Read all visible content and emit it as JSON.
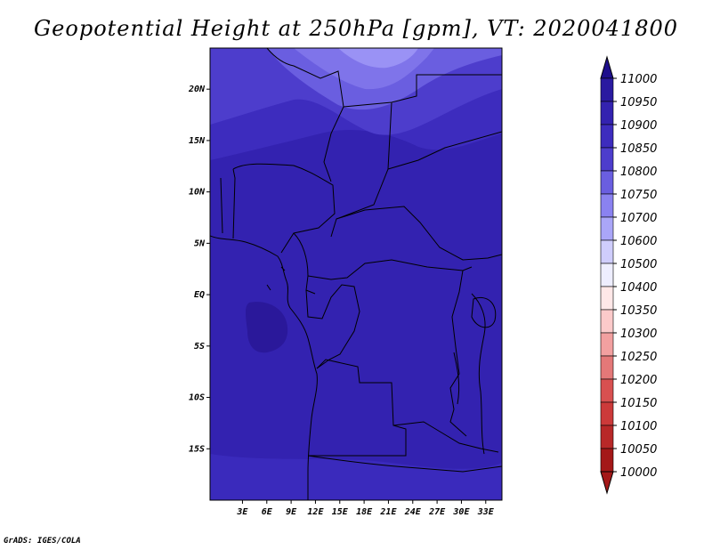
{
  "title": "Geopotential Height at 250hPa [gpm], VT: 2020041800",
  "credit": "GrADS: IGES/COLA",
  "map": {
    "lon_range": [
      -1,
      35
    ],
    "lat_range": [
      -20,
      24
    ],
    "lon_ticks": [
      {
        "value": 3,
        "label": "3E"
      },
      {
        "value": 6,
        "label": "6E"
      },
      {
        "value": 9,
        "label": "9E"
      },
      {
        "value": 12,
        "label": "12E"
      },
      {
        "value": 15,
        "label": "15E"
      },
      {
        "value": 18,
        "label": "18E"
      },
      {
        "value": 21,
        "label": "21E"
      },
      {
        "value": 24,
        "label": "24E"
      },
      {
        "value": 27,
        "label": "27E"
      },
      {
        "value": 30,
        "label": "30E"
      },
      {
        "value": 33,
        "label": "33E"
      }
    ],
    "lat_ticks": [
      {
        "value": 20,
        "label": "20N"
      },
      {
        "value": 15,
        "label": "15N"
      },
      {
        "value": 10,
        "label": "10N"
      },
      {
        "value": 5,
        "label": "5N"
      },
      {
        "value": 0,
        "label": "EQ"
      },
      {
        "value": -5,
        "label": "5S"
      },
      {
        "value": -10,
        "label": "10S"
      },
      {
        "value": -15,
        "label": "15S"
      }
    ]
  },
  "colorbar": {
    "levels": [
      "11000",
      "10950",
      "10900",
      "10850",
      "10800",
      "10750",
      "10700",
      "10600",
      "10500",
      "10400",
      "10350",
      "10300",
      "10250",
      "10200",
      "10150",
      "10100",
      "10050",
      "10000"
    ],
    "colors": [
      "#1e0f8c",
      "#2a1aa0",
      "#3322b0",
      "#3d2cbe",
      "#4d3dcc",
      "#6a5ee0",
      "#8a82f0",
      "#aaa6f8",
      "#cfcdfc",
      "#eeeeff",
      "#ffe8e8",
      "#fccaca",
      "#f2a0a0",
      "#e47878",
      "#d85050",
      "#cc3a3a",
      "#b82828",
      "#a41818"
    ]
  },
  "chart_data": {
    "type": "heatmap",
    "title": "Geopotential Height at 250hPa [gpm], VT: 2020041800",
    "xlabel": "",
    "ylabel": "",
    "x_range": [
      -1,
      35
    ],
    "y_range": [
      -20,
      24
    ],
    "zones": [
      {
        "band": "10700-10750",
        "region": "north-central near 16E-24E, 21N-24N"
      },
      {
        "band": "10750-10800",
        "region": "north, 13E-27E, 19N-23N"
      },
      {
        "band": "10800-10850",
        "region": "north, 10E-35E, 16N-21N"
      },
      {
        "band": "10850-10900",
        "region": "about 12N-17N"
      },
      {
        "band": "10900-10950",
        "region": "about 8S-12N"
      },
      {
        "band": "10950-11000",
        "region": "Gulf of Guinea off Gabon, near 5E, 2S-5S"
      },
      {
        "band": "10900-10950",
        "region": "south, 15S-20S"
      }
    ]
  }
}
